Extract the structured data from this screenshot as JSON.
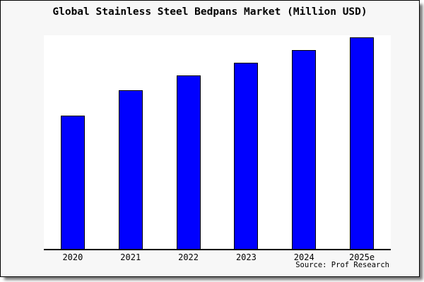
{
  "title": "Global Stainless Steel Bedpans Market (Million USD)",
  "source_text": "Source: Prof Research",
  "colors": {
    "bar_fill": "#0000FF",
    "bar_border": "#000000",
    "frame_background": "#F7F7F7",
    "plot_background": "#FFFFFF",
    "axis": "#000000",
    "text": "#000000"
  },
  "chart_data": {
    "type": "bar",
    "categories": [
      "2020",
      "2021",
      "2022",
      "2023",
      "2024",
      "2025e"
    ],
    "values": [
      63,
      75,
      82,
      88,
      94,
      100
    ],
    "title": "Global Stainless Steel Bedpans Market (Million USD)",
    "xlabel": "",
    "ylabel": "",
    "ylim": [
      0,
      101
    ],
    "grid": false,
    "legend": false,
    "y_axis_visible": false
  }
}
